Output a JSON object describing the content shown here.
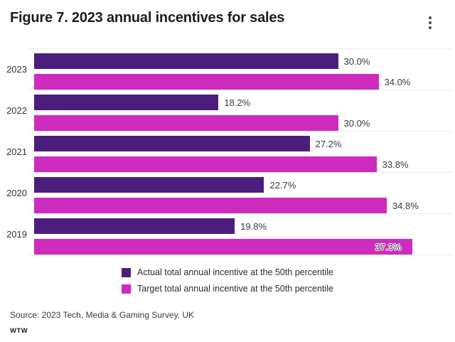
{
  "header": {
    "title": "Figure 7. 2023 annual incentives for sales"
  },
  "chart_data": {
    "type": "bar",
    "orientation": "horizontal",
    "title": "Figure 7. 2023 annual incentives for sales",
    "categories": [
      "2023",
      "2022",
      "2021",
      "2020",
      "2019"
    ],
    "series": [
      {
        "name": "Actual total annual incentive at the 50th percentile",
        "color": "#4b1e7d",
        "values": [
          30.0,
          18.2,
          27.2,
          22.7,
          19.8
        ],
        "labels": [
          "30.0%",
          "18.2%",
          "27.2%",
          "22.7%",
          "19.8%"
        ]
      },
      {
        "name": "Target total annual incentive at the 50th percentile",
        "color": "#cc2bbe",
        "values": [
          34.0,
          30.0,
          33.8,
          34.8,
          37.3
        ],
        "labels": [
          "34.0%",
          "30.0%",
          "33.8%",
          "34.8%",
          "37.3%"
        ]
      }
    ],
    "xlim": [
      0,
      40
    ],
    "grid": false,
    "value_labels": true,
    "legend_position": "bottom"
  },
  "legend": {
    "items": [
      {
        "label": "Actual total annual incentive at the 50th percentile",
        "color": "#4b1e7d"
      },
      {
        "label": "Target total annual incentive at the 50th percentile",
        "color": "#cc2bbe"
      }
    ]
  },
  "footer": {
    "source": "Source: 2023 Tech, Media & Gaming Survey, UK",
    "brand": "WTW"
  }
}
